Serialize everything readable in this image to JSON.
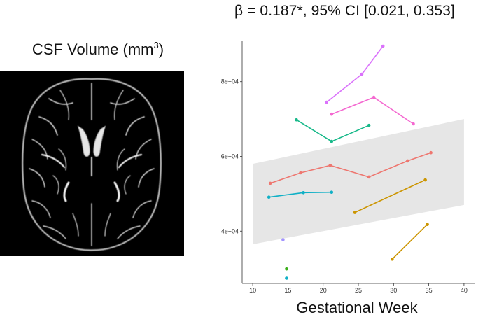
{
  "stat_annotation": "β = 0.187*, 95% CI [0.021, 0.353]",
  "image_panel": {
    "title_text": "CSF Volume (mm",
    "title_superscript": "3",
    "title_suffix": ")",
    "image_description_icon": "mri-axial-slice-icon"
  },
  "chart_data": {
    "type": "line",
    "xlabel": "Gestational Week",
    "ylabel": "",
    "x_ticks": [
      10,
      15,
      20,
      25,
      30,
      35,
      40
    ],
    "y_ticks": [
      40000,
      60000,
      80000
    ],
    "y_tick_labels": [
      "4e+04",
      "6e+04",
      "8e+04"
    ],
    "xlim": [
      8.5,
      41.5
    ],
    "ylim": [
      26000,
      91000
    ],
    "grid": false,
    "legend": "none",
    "confidence_band": {
      "x": [
        10,
        40
      ],
      "lower": [
        36500,
        47000
      ],
      "upper": [
        58000,
        70000
      ],
      "color": "#e6e6e6"
    },
    "series": [
      {
        "color": "#DA72FB",
        "points": [
          [
            20.5,
            74500
          ],
          [
            25.5,
            82000
          ],
          [
            28.5,
            89500
          ]
        ]
      },
      {
        "color": "#F468D0",
        "points": [
          [
            21.2,
            71300
          ],
          [
            27.2,
            75800
          ],
          [
            32.8,
            68700
          ]
        ]
      },
      {
        "color": "#18B98A",
        "points": [
          [
            16.2,
            69800
          ],
          [
            21.2,
            64000
          ],
          [
            26.5,
            68300
          ]
        ]
      },
      {
        "color": "#EE766F",
        "points": [
          [
            12.5,
            52800
          ],
          [
            16.8,
            55600
          ],
          [
            21,
            57600
          ],
          [
            26.5,
            54500
          ],
          [
            32,
            58800
          ],
          [
            35.3,
            61000
          ]
        ]
      },
      {
        "color": "#10B0C6",
        "points": [
          [
            12.3,
            49100
          ],
          [
            17.2,
            50300
          ],
          [
            21.2,
            50400
          ]
        ]
      },
      {
        "color": "#CC9500",
        "points": [
          [
            24.5,
            45000
          ],
          [
            34.5,
            53700
          ]
        ]
      },
      {
        "color": "#CC9500",
        "points": [
          [
            29.8,
            32500
          ],
          [
            34.8,
            41800
          ]
        ]
      },
      {
        "color": "#A294FF",
        "points": [
          [
            14.3,
            37700
          ]
        ]
      },
      {
        "color": "#3BAF1A",
        "points": [
          [
            14.8,
            29900
          ]
        ]
      },
      {
        "color": "#10B0C6",
        "points": [
          [
            14.8,
            27400
          ]
        ]
      }
    ]
  }
}
